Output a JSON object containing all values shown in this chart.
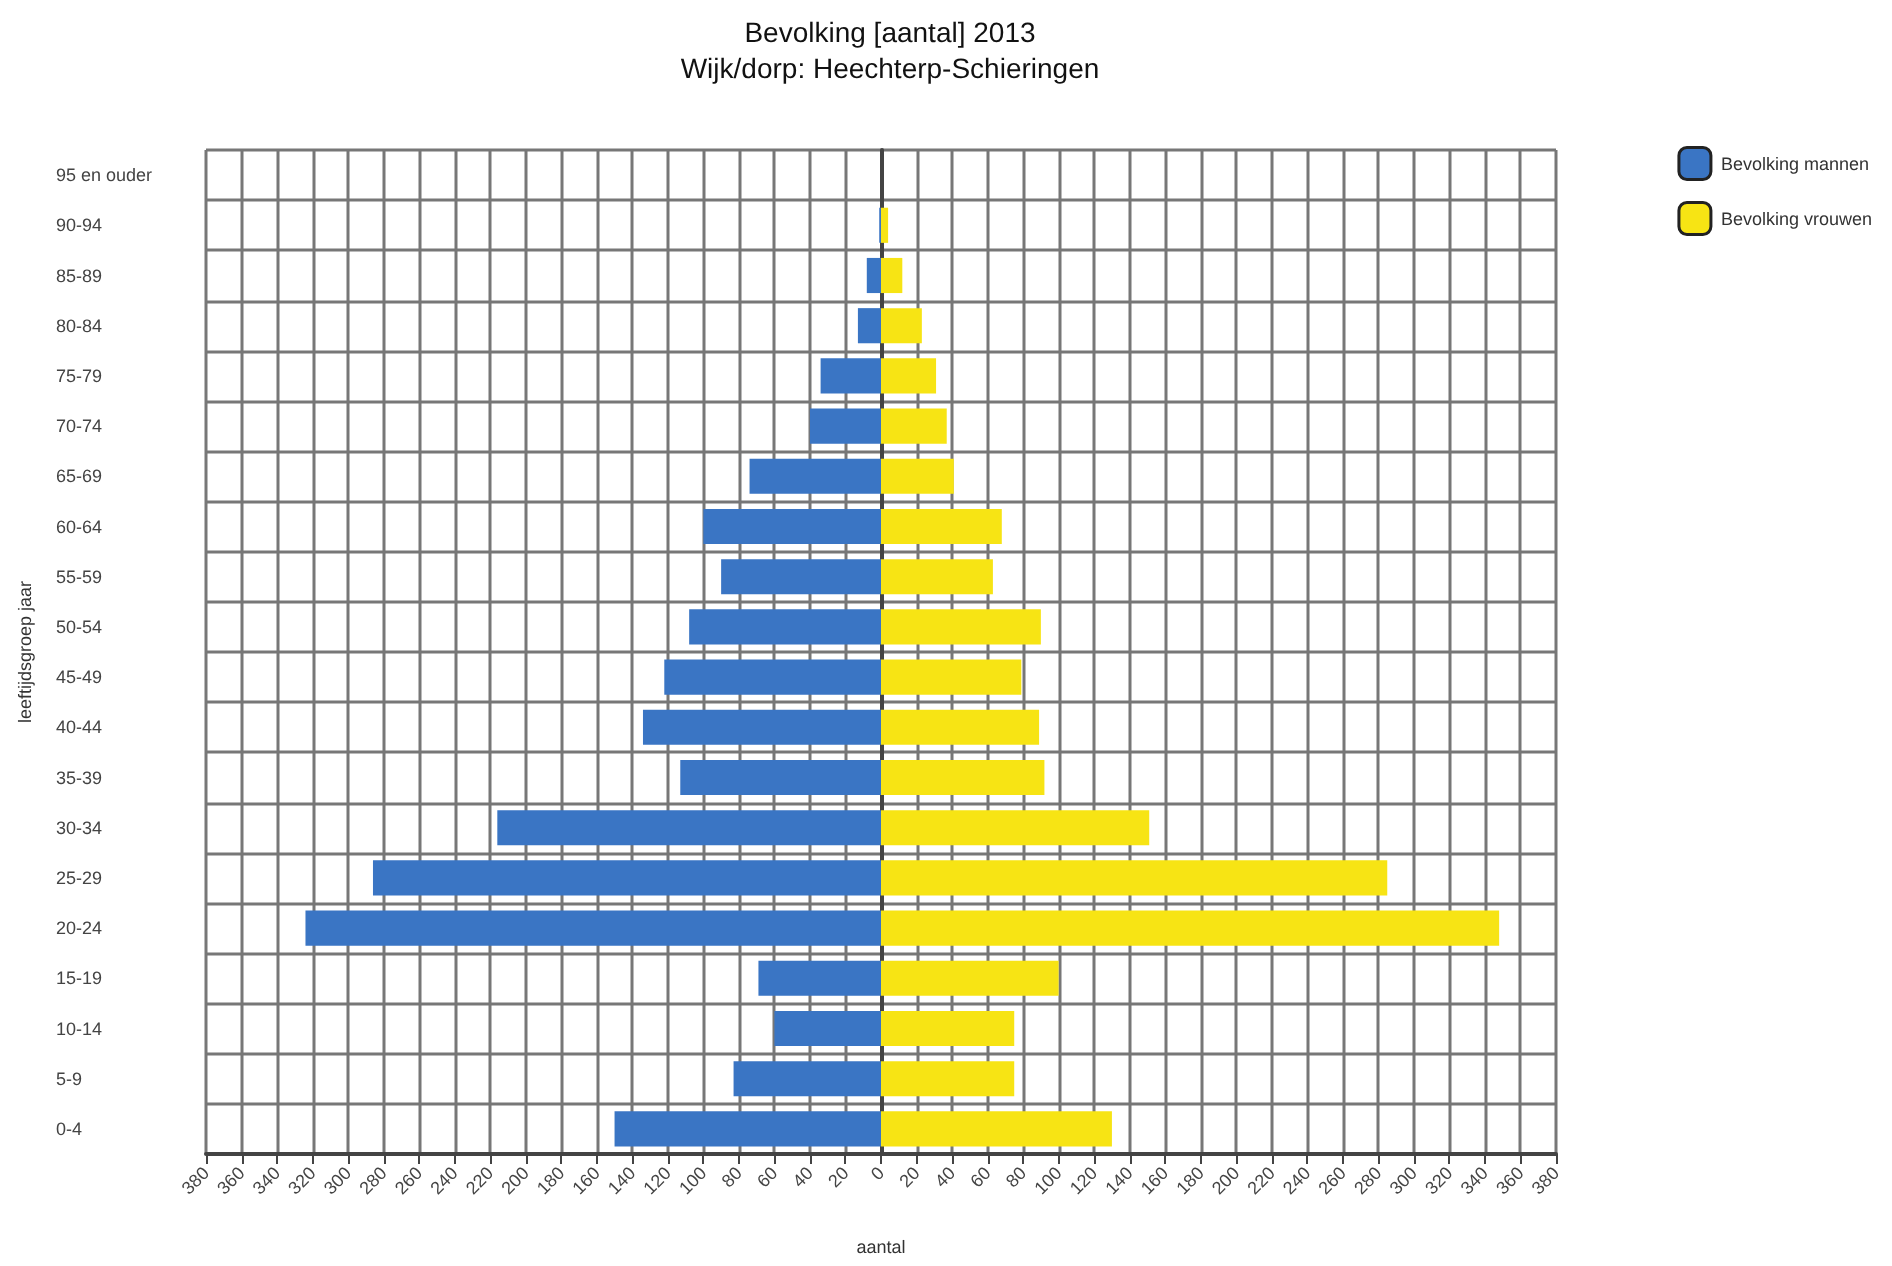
{
  "chart_data": {
    "type": "bar",
    "orientation": "horizontal",
    "title": "Bevolking [aantal] 2013",
    "subtitle": "Wijk/dorp: Heechterp-Schieringen",
    "xlabel": "aantal",
    "ylabel": "leeftijdsgroep jaar",
    "categories": [
      "95 en ouder",
      "90-94",
      "85-89",
      "80-84",
      "75-79",
      "70-74",
      "65-69",
      "60-64",
      "55-59",
      "50-54",
      "45-49",
      "40-44",
      "35-39",
      "30-34",
      "25-29",
      "20-24",
      "15-19",
      "10-14",
      "5-9",
      "0-4"
    ],
    "series": [
      {
        "name": "Bevolking mannen",
        "color": "#3a75c4",
        "values": [
          0,
          -1,
          -8,
          -13,
          -34,
          -40,
          -74,
          -100,
          -90,
          -108,
          -122,
          -134,
          -113,
          -216,
          -286,
          -324,
          -69,
          -60,
          -83,
          -150
        ]
      },
      {
        "name": "Bevolking vrouwen",
        "color": "#f7e414",
        "values": [
          0,
          4,
          12,
          23,
          31,
          37,
          41,
          68,
          63,
          90,
          79,
          89,
          92,
          151,
          285,
          348,
          100,
          75,
          75,
          130
        ]
      }
    ],
    "xlim": [
      -380,
      380
    ],
    "xticks": [
      {
        "value": -380,
        "label": "380"
      },
      {
        "value": -360,
        "label": "360"
      },
      {
        "value": -340,
        "label": "340"
      },
      {
        "value": -320,
        "label": "320"
      },
      {
        "value": -300,
        "label": "300"
      },
      {
        "value": -280,
        "label": "280"
      },
      {
        "value": -260,
        "label": "260"
      },
      {
        "value": -240,
        "label": "240"
      },
      {
        "value": -220,
        "label": "220"
      },
      {
        "value": -200,
        "label": "200"
      },
      {
        "value": -180,
        "label": "180"
      },
      {
        "value": -160,
        "label": "160"
      },
      {
        "value": -140,
        "label": "140"
      },
      {
        "value": -120,
        "label": "120"
      },
      {
        "value": -100,
        "label": "100"
      },
      {
        "value": -80,
        "label": "80"
      },
      {
        "value": -60,
        "label": "60"
      },
      {
        "value": -40,
        "label": "40"
      },
      {
        "value": -20,
        "label": "20"
      },
      0,
      20,
      40,
      60,
      80,
      100,
      120,
      140,
      160,
      180,
      200,
      220,
      240,
      260,
      280,
      300,
      320,
      340,
      360,
      380
    ],
    "grid": true,
    "legend": "top right",
    "stacked": true
  }
}
